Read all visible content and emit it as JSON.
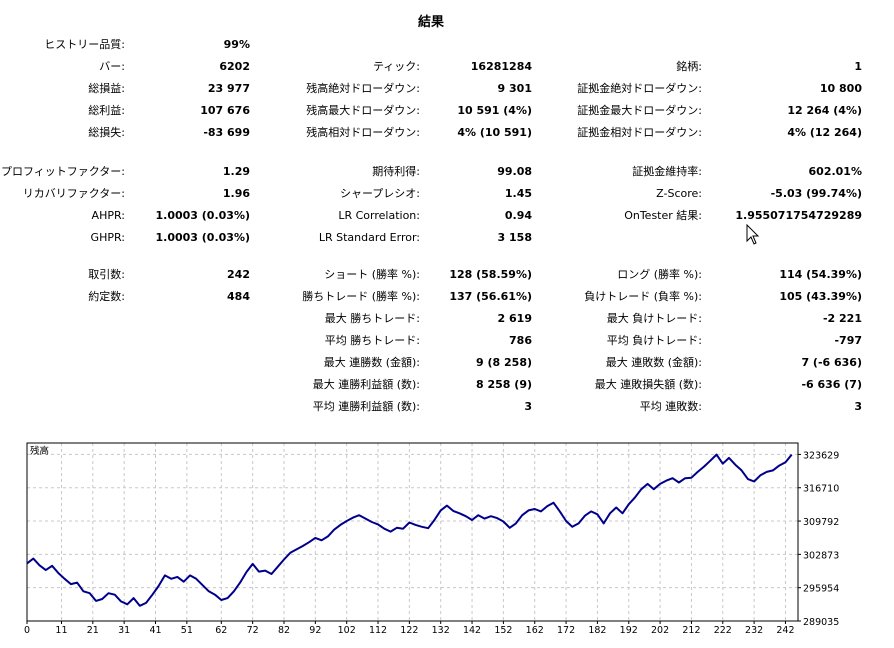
{
  "title": "結果",
  "rows": [
    {
      "c1l": "ヒストリー品質:",
      "c1v": "99%",
      "c2l": "",
      "c2v": "",
      "c3l": "",
      "c3v": ""
    },
    {
      "c1l": "バー:",
      "c1v": "6202",
      "c2l": "ティック:",
      "c2v": "16281284",
      "c3l": "銘柄:",
      "c3v": "1"
    },
    {
      "c1l": "総損益:",
      "c1v": "23 977",
      "c2l": "残高絶対ドローダウン:",
      "c2v": "9 301",
      "c3l": "証拠金絶対ドローダウン:",
      "c3v": "10 800"
    },
    {
      "c1l": "総利益:",
      "c1v": "107 676",
      "c2l": "残高最大ドローダウン:",
      "c2v": "10 591 (4%)",
      "c3l": "証拠金最大ドローダウン:",
      "c3v": "12 264 (4%)"
    },
    {
      "c1l": "総損失:",
      "c1v": "-83 699",
      "c2l": "残高相対ドローダウン:",
      "c2v": "4% (10 591)",
      "c3l": "証拠金相対ドローダウン:",
      "c3v": "4% (12 264)"
    },
    {
      "c1l": "プロフィットファクター:",
      "c1v": "1.29",
      "c2l": "期待利得:",
      "c2v": "99.08",
      "c3l": "証拠金維持率:",
      "c3v": "602.01%"
    },
    {
      "c1l": "リカバリファクター:",
      "c1v": "1.96",
      "c2l": "シャープレシオ:",
      "c2v": "1.45",
      "c3l": "Z-Score:",
      "c3v": "-5.03 (99.74%)"
    },
    {
      "c1l": "AHPR:",
      "c1v": "1.0003 (0.03%)",
      "c2l": "LR Correlation:",
      "c2v": "0.94",
      "c3l": "OnTester 結果:",
      "c3v": "1.955071754729289"
    },
    {
      "c1l": "GHPR:",
      "c1v": "1.0003 (0.03%)",
      "c2l": "LR Standard Error:",
      "c2v": "3 158",
      "c3l": "",
      "c3v": ""
    },
    {
      "c1l": "取引数:",
      "c1v": "242",
      "c2l": "ショート (勝率 %):",
      "c2v": "128 (58.59%)",
      "c3l": "ロング (勝率 %):",
      "c3v": "114 (54.39%)"
    },
    {
      "c1l": "約定数:",
      "c1v": "484",
      "c2l": "勝ちトレード (勝率 %):",
      "c2v": "137 (56.61%)",
      "c3l": "負けトレード (負率 %):",
      "c3v": "105 (43.39%)"
    },
    {
      "c1l": "",
      "c1v": "",
      "c2l": "最大 勝ちトレード:",
      "c2v": "2 619",
      "c3l": "最大 負けトレード:",
      "c3v": "-2 221"
    },
    {
      "c1l": "",
      "c1v": "",
      "c2l": "平均 勝ちトレード:",
      "c2v": "786",
      "c3l": "平均 負けトレード:",
      "c3v": "-797"
    },
    {
      "c1l": "",
      "c1v": "",
      "c2l": "最大 連勝数 (金額):",
      "c2v": "9 (8 258)",
      "c3l": "最大 連敗数 (金額):",
      "c3v": "7 (-6 636)"
    },
    {
      "c1l": "",
      "c1v": "",
      "c2l": "最大 連勝利益額 (数):",
      "c2v": "8 258 (9)",
      "c3l": "最大 連敗損失額 (数):",
      "c3v": "-6 636 (7)"
    },
    {
      "c1l": "",
      "c1v": "",
      "c2l": "平均 連勝利益額 (数):",
      "c2v": "3",
      "c3l": "平均 連敗数:",
      "c3v": "3"
    }
  ],
  "chart_data": {
    "type": "line",
    "series": [
      {
        "name": "残高",
        "color": "#00008b"
      }
    ],
    "legend": "top-left",
    "grid": true,
    "xlim": [
      0,
      246
    ],
    "ylim": [
      289035,
      326000
    ],
    "x_ticks": [
      "0",
      "11",
      "21",
      "31",
      "41",
      "51",
      "62",
      "72",
      "82",
      "92",
      "102",
      "112",
      "122",
      "132",
      "142",
      "152",
      "162",
      "172",
      "182",
      "192",
      "202",
      "212",
      "222",
      "232",
      "242"
    ],
    "y_ticks": [
      "289035",
      "295954",
      "302873",
      "309792",
      "316710",
      "323629"
    ],
    "points": [
      [
        0,
        301000
      ],
      [
        2,
        302000
      ],
      [
        4,
        300600
      ],
      [
        6,
        299600
      ],
      [
        8,
        300500
      ],
      [
        10,
        299000
      ],
      [
        12,
        297800
      ],
      [
        14,
        296700
      ],
      [
        16,
        297000
      ],
      [
        18,
        295200
      ],
      [
        20,
        294800
      ],
      [
        22,
        293200
      ],
      [
        24,
        293600
      ],
      [
        26,
        294800
      ],
      [
        28,
        294500
      ],
      [
        30,
        293100
      ],
      [
        32,
        292500
      ],
      [
        34,
        293800
      ],
      [
        36,
        292200
      ],
      [
        38,
        292800
      ],
      [
        40,
        294500
      ],
      [
        42,
        296300
      ],
      [
        44,
        298500
      ],
      [
        46,
        297800
      ],
      [
        48,
        298200
      ],
      [
        50,
        297200
      ],
      [
        52,
        298500
      ],
      [
        54,
        297800
      ],
      [
        56,
        296500
      ],
      [
        58,
        295200
      ],
      [
        60,
        294500
      ],
      [
        62,
        293400
      ],
      [
        64,
        293800
      ],
      [
        66,
        295200
      ],
      [
        68,
        297000
      ],
      [
        70,
        299200
      ],
      [
        72,
        300900
      ],
      [
        74,
        299300
      ],
      [
        76,
        299500
      ],
      [
        78,
        298800
      ],
      [
        80,
        300300
      ],
      [
        82,
        301800
      ],
      [
        84,
        303200
      ],
      [
        86,
        303900
      ],
      [
        88,
        304600
      ],
      [
        90,
        305400
      ],
      [
        92,
        306300
      ],
      [
        94,
        305800
      ],
      [
        96,
        306600
      ],
      [
        98,
        308000
      ],
      [
        100,
        309000
      ],
      [
        102,
        309800
      ],
      [
        104,
        310500
      ],
      [
        106,
        311000
      ],
      [
        108,
        310300
      ],
      [
        110,
        309600
      ],
      [
        112,
        309100
      ],
      [
        114,
        308200
      ],
      [
        116,
        307600
      ],
      [
        118,
        308400
      ],
      [
        120,
        308200
      ],
      [
        122,
        309500
      ],
      [
        124,
        309000
      ],
      [
        126,
        308600
      ],
      [
        128,
        308300
      ],
      [
        130,
        310000
      ],
      [
        132,
        312000
      ],
      [
        134,
        313000
      ],
      [
        136,
        311900
      ],
      [
        138,
        311400
      ],
      [
        140,
        310800
      ],
      [
        142,
        310000
      ],
      [
        144,
        311000
      ],
      [
        146,
        310300
      ],
      [
        148,
        310800
      ],
      [
        150,
        310400
      ],
      [
        152,
        309700
      ],
      [
        154,
        308400
      ],
      [
        156,
        309300
      ],
      [
        158,
        311000
      ],
      [
        160,
        312000
      ],
      [
        162,
        312300
      ],
      [
        164,
        311800
      ],
      [
        166,
        312900
      ],
      [
        168,
        313600
      ],
      [
        170,
        311800
      ],
      [
        172,
        309800
      ],
      [
        174,
        308600
      ],
      [
        176,
        309300
      ],
      [
        178,
        310900
      ],
      [
        180,
        311800
      ],
      [
        182,
        311200
      ],
      [
        184,
        309300
      ],
      [
        186,
        311400
      ],
      [
        188,
        312600
      ],
      [
        190,
        311400
      ],
      [
        192,
        313300
      ],
      [
        194,
        314700
      ],
      [
        196,
        316400
      ],
      [
        198,
        317500
      ],
      [
        200,
        316400
      ],
      [
        202,
        317500
      ],
      [
        204,
        318200
      ],
      [
        206,
        318700
      ],
      [
        208,
        317800
      ],
      [
        210,
        318700
      ],
      [
        212,
        318800
      ],
      [
        214,
        320000
      ],
      [
        216,
        321100
      ],
      [
        218,
        322300
      ],
      [
        220,
        323600
      ],
      [
        222,
        321700
      ],
      [
        224,
        322900
      ],
      [
        226,
        321500
      ],
      [
        228,
        320300
      ],
      [
        230,
        318500
      ],
      [
        232,
        318000
      ],
      [
        234,
        319300
      ],
      [
        236,
        320000
      ],
      [
        238,
        320300
      ],
      [
        240,
        321300
      ],
      [
        242,
        322000
      ],
      [
        244,
        323600
      ]
    ]
  }
}
